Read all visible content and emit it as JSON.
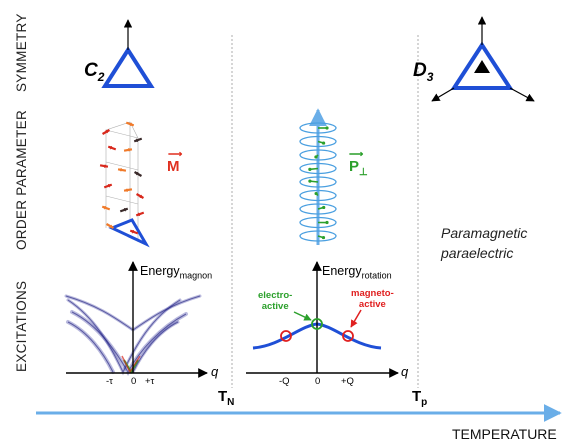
{
  "row_labels": {
    "symmetry": "SYMMETRY",
    "order_parameter": "ORDER PARAMETER",
    "excitations": "EXCITATIONS"
  },
  "symmetry": {
    "low": "C",
    "low_sub": "2",
    "high": "D",
    "high_sub": "3"
  },
  "order_parameter": {
    "magnetization": "M",
    "polarization": "P",
    "polarization_sub": "⊥",
    "paramagnetic_line1": "Paramagnetic",
    "paramagnetic_line2": "paraelectric"
  },
  "excitations": {
    "magnon": {
      "ylabel": "Energy",
      "ylabel_sub": "magnon",
      "xlabel": "q",
      "ticks": [
        "-τ",
        "0",
        "+τ"
      ]
    },
    "rotation": {
      "ylabel": "Energy",
      "ylabel_sub": "rotation",
      "xlabel": "q",
      "ticks": [
        "-Q",
        "0",
        "+Q"
      ],
      "electro_active_1": "electro-",
      "electro_active_2": "active",
      "magneto_active_1": "magneto-",
      "magneto_active_2": "active"
    }
  },
  "temperature_axis": {
    "label": "TEMPERATURE",
    "tn": "T",
    "tn_sub": "N",
    "tp": "T",
    "tp_sub": "p"
  },
  "colors": {
    "triangle": "#1f4fd6",
    "magnetization": "#e03020",
    "polarization": "#2ca02c",
    "helix": "#4a9fe0",
    "dispersion": "#1f4fd6",
    "magneto_active": "#e02020",
    "temperature_axis": "#6aaee8",
    "divider": "#bbbbbb"
  }
}
